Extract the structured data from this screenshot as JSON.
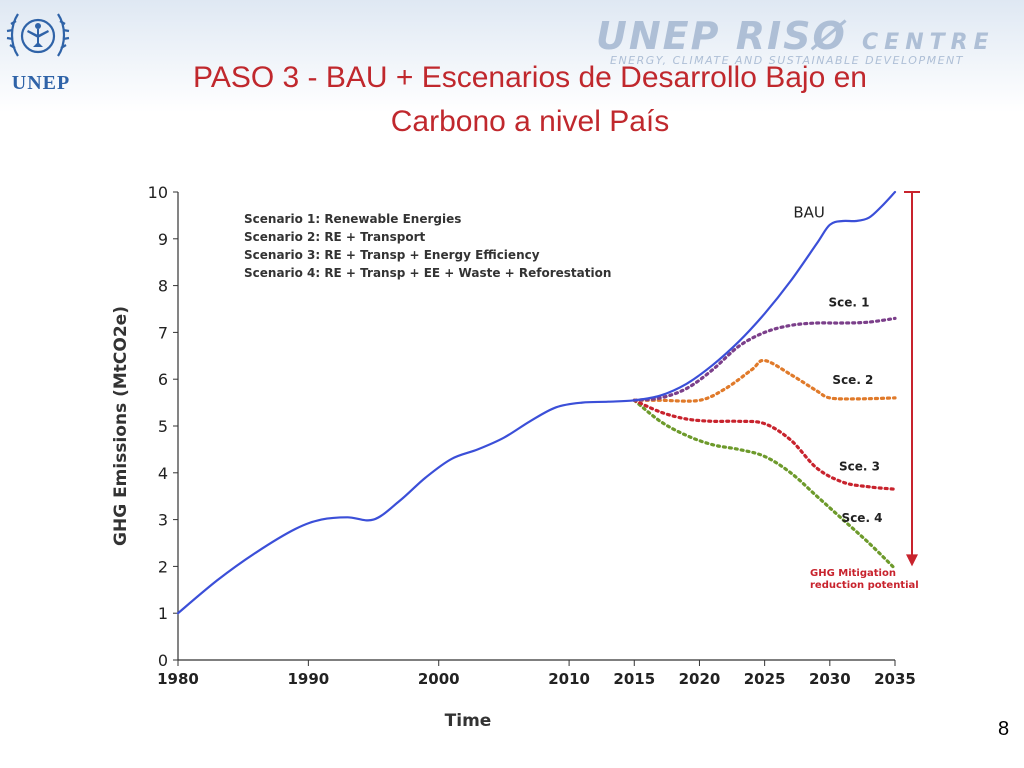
{
  "slide": {
    "title_line1": "PASO 3 - BAU + Escenarios de Desarrollo  Bajo en",
    "title_line2": "Carbono a nivel País",
    "page_number": "8",
    "logo_left_text": "UNEP",
    "logo_right_main": "UNEP RISØ",
    "logo_right_centre": "CENTRE",
    "logo_right_sub": "ENERGY, CLIMATE AND SUSTAINABLE DEVELOPMENT"
  },
  "colors": {
    "title": "#c0282d",
    "bau": "#3b4fd8",
    "sce1": "#7b3f8a",
    "sce2": "#e07a2a",
    "sce3": "#c8232d",
    "sce4": "#6d9a2b",
    "arrow": "#c8232d",
    "unep_blue": "#2f63a8"
  },
  "chart_data": {
    "type": "line",
    "xlabel": "Time",
    "ylabel": "GHG Emissions (MtCO2e)",
    "xlim": [
      1980,
      2035
    ],
    "ylim": [
      0,
      10
    ],
    "x_ticks": [
      1980,
      1990,
      2000,
      2010,
      2015,
      2020,
      2025,
      2030,
      2035
    ],
    "y_ticks": [
      0,
      1,
      2,
      3,
      4,
      5,
      6,
      7,
      8,
      9,
      10
    ],
    "legend_lines": [
      "Scenario 1: Renewable Energies",
      "Scenario 2: RE + Transport",
      "Scenario 3: RE + Transp + Energy Efficiency",
      "Scenario 4: RE + Transp + EE + Waste + Reforestation"
    ],
    "legend_placement": "top-left",
    "series": [
      {
        "name": "BAU",
        "style": "solid",
        "x": [
          1980,
          1983,
          1986,
          1989,
          1991,
          1993,
          1995,
          1997,
          1999,
          2001,
          2003,
          2005,
          2007,
          2009,
          2011,
          2013,
          2015,
          2017,
          2019,
          2021,
          2023,
          2025,
          2027,
          2029,
          2030,
          2031,
          2032,
          2033,
          2034,
          2035
        ],
        "y": [
          1.0,
          1.7,
          2.3,
          2.8,
          3.0,
          3.05,
          3.0,
          3.4,
          3.9,
          4.3,
          4.5,
          4.75,
          5.1,
          5.4,
          5.5,
          5.52,
          5.55,
          5.65,
          5.9,
          6.3,
          6.8,
          7.4,
          8.1,
          8.9,
          9.3,
          9.38,
          9.38,
          9.45,
          9.7,
          10.0
        ]
      },
      {
        "name": "Sce. 1",
        "style": "dotted",
        "x": [
          2015,
          2017,
          2019,
          2021,
          2023,
          2025,
          2027,
          2029,
          2031,
          2033,
          2035
        ],
        "y": [
          5.55,
          5.6,
          5.8,
          6.2,
          6.7,
          7.0,
          7.15,
          7.2,
          7.2,
          7.22,
          7.3
        ]
      },
      {
        "name": "Sce. 2",
        "style": "dotted",
        "x": [
          2015,
          2017,
          2020,
          2022,
          2024,
          2025,
          2027,
          2029,
          2030,
          2032,
          2035
        ],
        "y": [
          5.55,
          5.55,
          5.55,
          5.8,
          6.2,
          6.4,
          6.1,
          5.75,
          5.6,
          5.58,
          5.6
        ]
      },
      {
        "name": "Sce. 3",
        "style": "dotted",
        "x": [
          2015,
          2017,
          2019,
          2021,
          2023,
          2025,
          2027,
          2029,
          2031,
          2033,
          2035
        ],
        "y": [
          5.55,
          5.3,
          5.15,
          5.1,
          5.1,
          5.05,
          4.7,
          4.1,
          3.8,
          3.7,
          3.65
        ]
      },
      {
        "name": "Sce. 4",
        "style": "dotted",
        "x": [
          2015,
          2017,
          2019,
          2021,
          2023,
          2025,
          2027,
          2029,
          2031,
          2033,
          2035
        ],
        "y": [
          5.55,
          5.1,
          4.8,
          4.6,
          4.5,
          4.35,
          4.0,
          3.5,
          3.0,
          2.5,
          1.95
        ]
      }
    ],
    "series_labels": [
      {
        "text": "BAU",
        "x": 2027.2,
        "y": 9.45
      },
      {
        "text": "Sce. 1",
        "x": 2029.9,
        "y": 7.55
      },
      {
        "text": "Sce. 2",
        "x": 2030.2,
        "y": 5.9
      },
      {
        "text": "Sce. 3",
        "x": 2030.7,
        "y": 4.05
      },
      {
        "text": "Sce. 4",
        "x": 2030.9,
        "y": 2.95
      }
    ],
    "annotation": {
      "text_line1": "GHG Mitigation",
      "text_line2": "reduction potential",
      "arrow_from_y": 10.0,
      "arrow_to_y": 2.0
    }
  }
}
